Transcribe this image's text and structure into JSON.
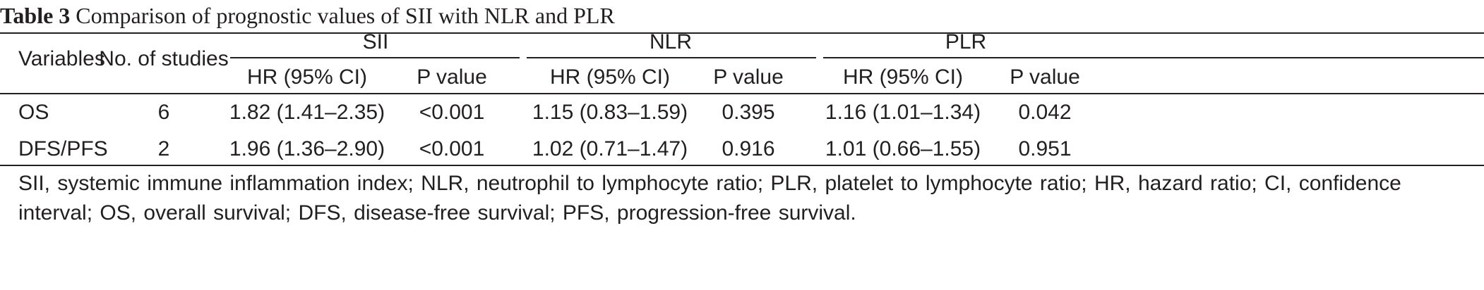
{
  "caption": {
    "label": "Table 3",
    "text": "Comparison of prognostic values of SII with NLR and PLR"
  },
  "header": {
    "variables": "Variables",
    "studies": "No. of studies",
    "groups": [
      "SII",
      "NLR",
      "PLR"
    ],
    "hr": "HR (95% CI)",
    "p": "P value"
  },
  "rows": [
    {
      "variable": "OS",
      "studies": "6",
      "sii_hr": "1.82 (1.41–2.35)",
      "sii_p": "<0.001",
      "nlr_hr": "1.15 (0.83–1.59)",
      "nlr_p": "0.395",
      "plr_hr": "1.16 (1.01–1.34)",
      "plr_p": "0.042"
    },
    {
      "variable": "DFS/PFS",
      "studies": "2",
      "sii_hr": "1.96 (1.36–2.90)",
      "sii_p": "<0.001",
      "nlr_hr": "1.02 (0.71–1.47)",
      "nlr_p": "0.916",
      "plr_hr": "1.01 (0.66–1.55)",
      "plr_p": "0.951"
    }
  ],
  "footnote": "SII, systemic immune inflammation index; NLR, neutrophil to lymphocyte ratio; PLR, platelet to lymphocyte ratio; HR, hazard ratio; CI, confidence interval; OS, overall survival; DFS, disease-free survival; PFS, progression-free survival."
}
